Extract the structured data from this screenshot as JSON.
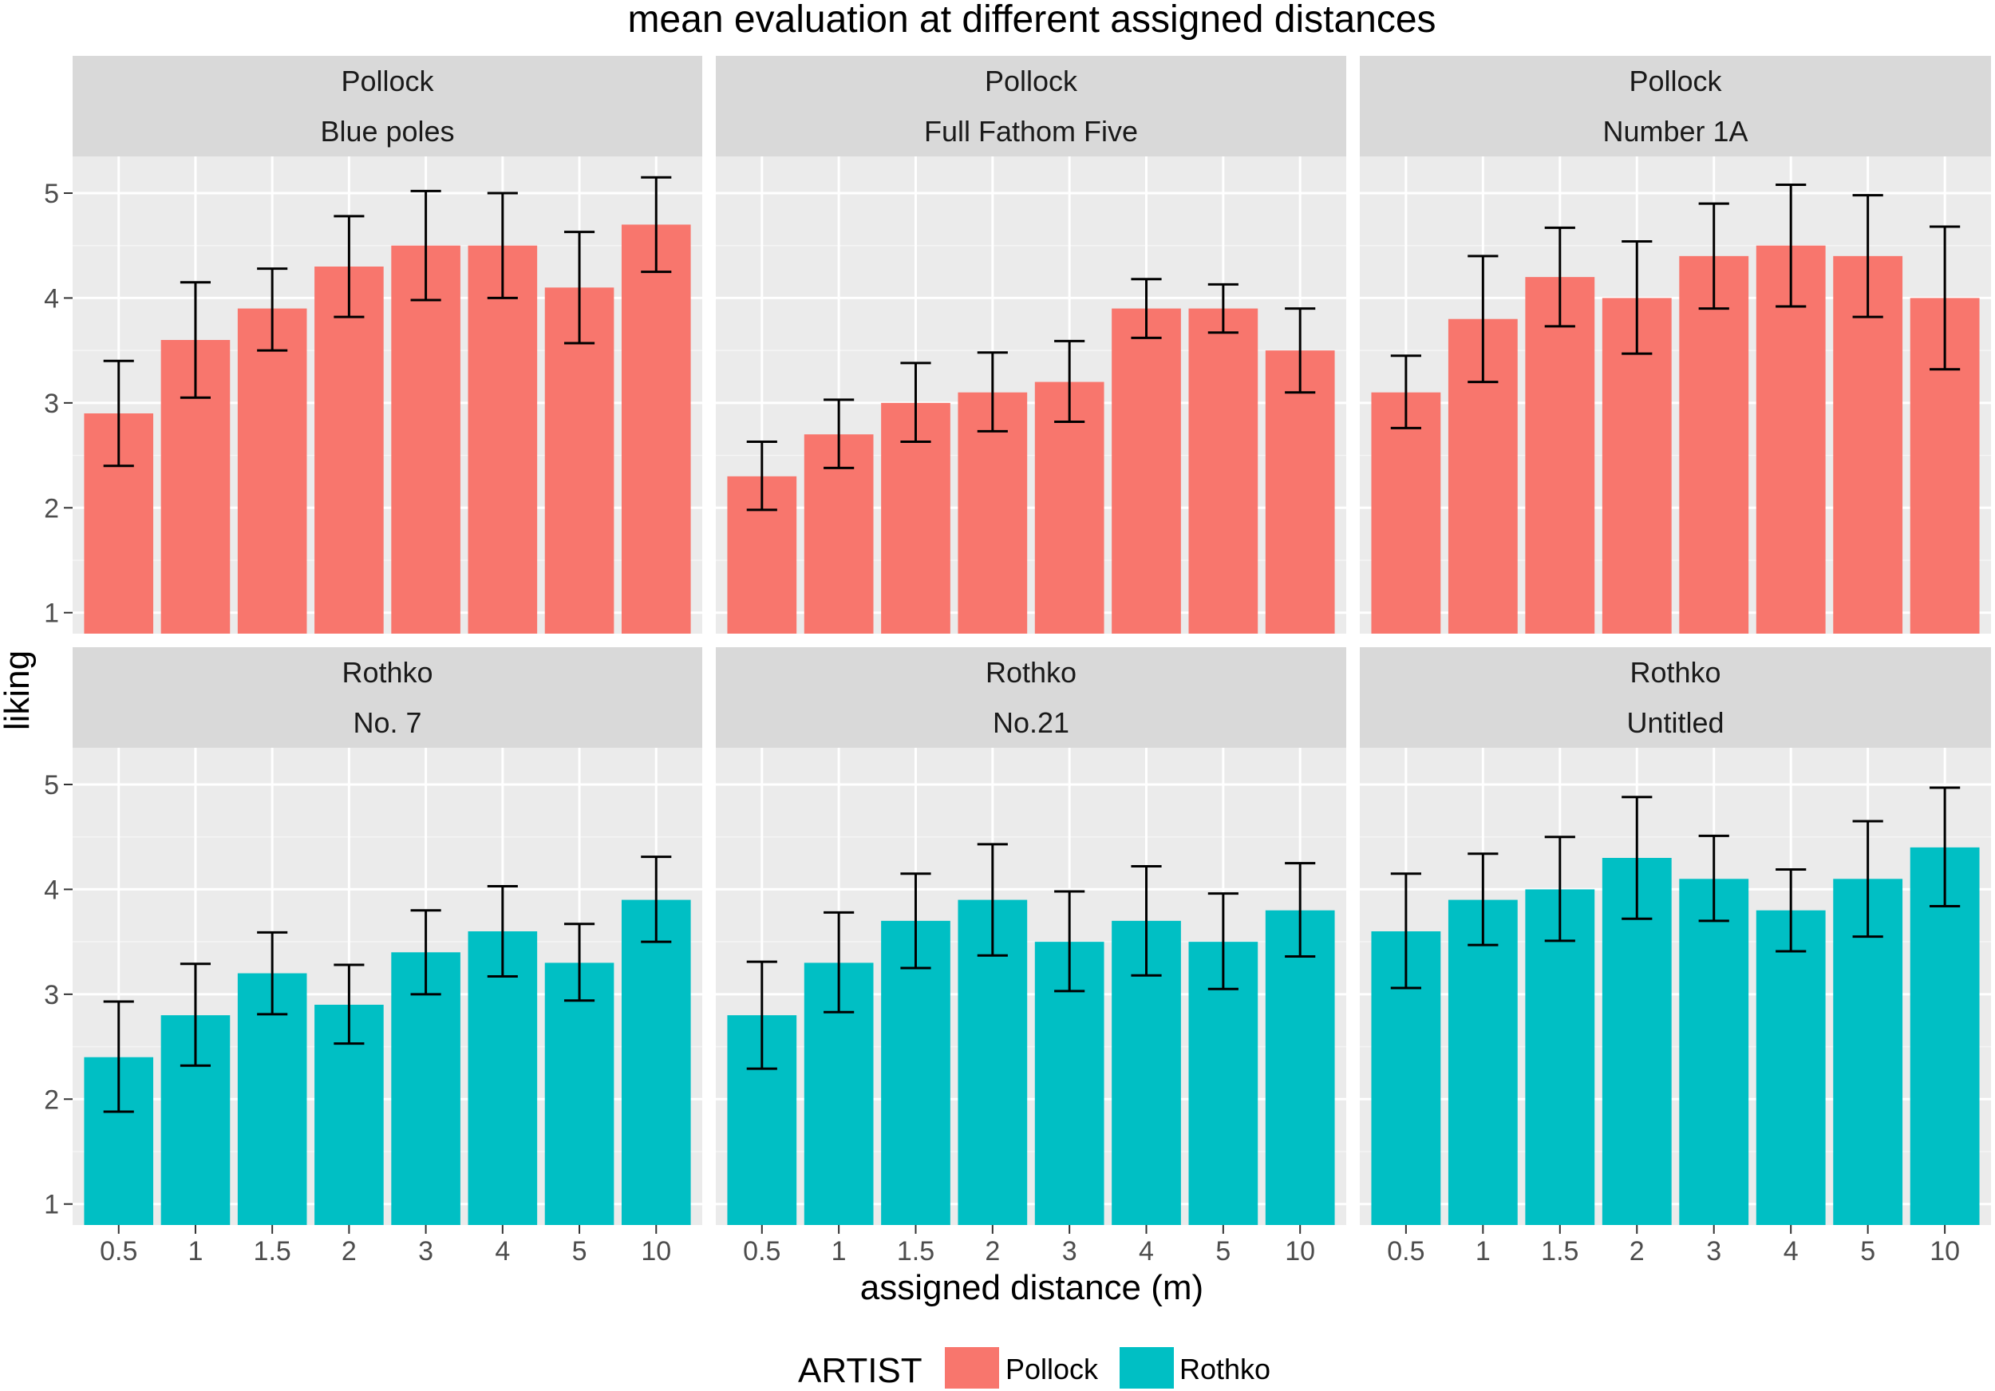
{
  "chart_data": {
    "type": "bar",
    "title": "mean evaluation at different assigned distances",
    "xlabel": "assigned distance (m)",
    "ylabel": "liking",
    "categories": [
      "0.5",
      "1",
      "1.5",
      "2",
      "3",
      "4",
      "5",
      "10"
    ],
    "ylim": [
      0.8,
      5.35
    ],
    "yticks": [
      1,
      2,
      3,
      4,
      5
    ],
    "grid": true,
    "legend": {
      "title": "ARTIST",
      "position": "bottom",
      "entries": [
        {
          "name": "Pollock",
          "color": "#F8766D"
        },
        {
          "name": "Rothko",
          "color": "#00BFC4"
        }
      ]
    },
    "panels": [
      {
        "artist": "Pollock",
        "painting": "Blue poles",
        "color": "#F8766D",
        "values": [
          2.9,
          3.6,
          3.9,
          4.3,
          4.5,
          4.5,
          4.1,
          4.7
        ],
        "lower": [
          2.4,
          3.05,
          3.5,
          3.82,
          3.98,
          4.0,
          3.57,
          4.25
        ],
        "upper": [
          3.4,
          4.15,
          4.28,
          4.78,
          5.02,
          5.0,
          4.63,
          5.15
        ]
      },
      {
        "artist": "Pollock",
        "painting": "Full Fathom Five",
        "color": "#F8766D",
        "values": [
          2.3,
          2.7,
          3.0,
          3.1,
          3.2,
          3.9,
          3.9,
          3.5
        ],
        "lower": [
          1.98,
          2.38,
          2.63,
          2.73,
          2.82,
          3.62,
          3.67,
          3.1
        ],
        "upper": [
          2.63,
          3.03,
          3.38,
          3.48,
          3.59,
          4.18,
          4.13,
          3.9
        ]
      },
      {
        "artist": "Pollock",
        "painting": "Number 1A",
        "color": "#F8766D",
        "values": [
          3.1,
          3.8,
          4.2,
          4.0,
          4.4,
          4.5,
          4.4,
          4.0
        ],
        "lower": [
          2.76,
          3.2,
          3.73,
          3.47,
          3.9,
          3.92,
          3.82,
          3.32
        ],
        "upper": [
          3.45,
          4.4,
          4.67,
          4.54,
          4.9,
          5.08,
          4.98,
          4.68
        ]
      },
      {
        "artist": "Rothko",
        "painting": "No. 7",
        "color": "#00BFC4",
        "values": [
          2.4,
          2.8,
          3.2,
          2.9,
          3.4,
          3.6,
          3.3,
          3.9
        ],
        "lower": [
          1.88,
          2.32,
          2.81,
          2.53,
          3.0,
          3.17,
          2.94,
          3.5
        ],
        "upper": [
          2.93,
          3.29,
          3.59,
          3.28,
          3.8,
          4.03,
          3.67,
          4.31
        ]
      },
      {
        "artist": "Rothko",
        "painting": "No.21",
        "color": "#00BFC4",
        "values": [
          2.8,
          3.3,
          3.7,
          3.9,
          3.5,
          3.7,
          3.5,
          3.8
        ],
        "lower": [
          2.29,
          2.83,
          3.25,
          3.37,
          3.03,
          3.18,
          3.05,
          3.36
        ],
        "upper": [
          3.31,
          3.78,
          4.15,
          4.43,
          3.98,
          4.22,
          3.96,
          4.25
        ]
      },
      {
        "artist": "Rothko",
        "painting": "Untitled",
        "color": "#00BFC4",
        "values": [
          3.6,
          3.9,
          4.0,
          4.3,
          4.1,
          3.8,
          4.1,
          4.4
        ],
        "lower": [
          3.06,
          3.47,
          3.51,
          3.72,
          3.7,
          3.41,
          3.55,
          3.84
        ],
        "upper": [
          4.15,
          4.34,
          4.5,
          4.88,
          4.51,
          4.19,
          4.65,
          4.97
        ]
      }
    ]
  }
}
